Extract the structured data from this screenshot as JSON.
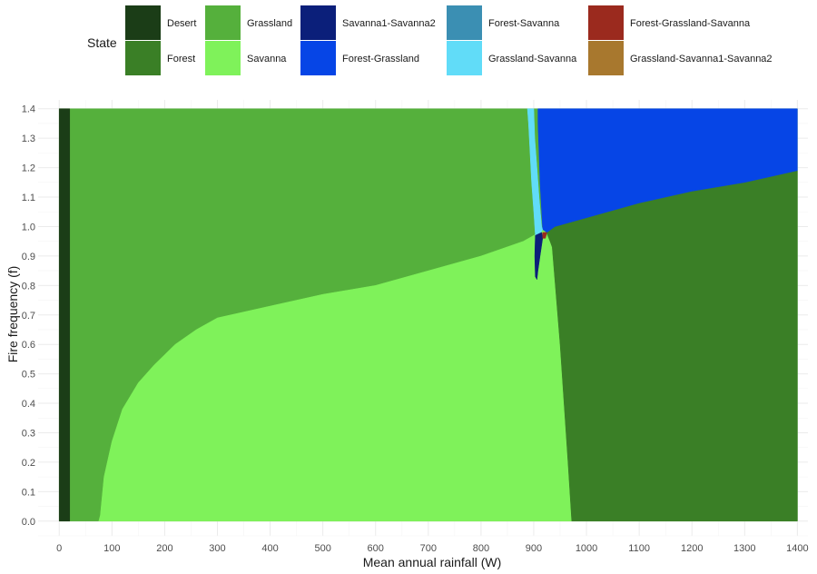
{
  "chart_data": {
    "type": "heatmap",
    "title": "",
    "xlabel": "Mean annual rainfall (W)",
    "ylabel": "Fire frequency (f)",
    "xlim": [
      -40,
      1420
    ],
    "ylim": [
      -0.05,
      1.43
    ],
    "x_ticks": [
      0,
      100,
      200,
      300,
      400,
      500,
      600,
      700,
      800,
      900,
      1000,
      1100,
      1200,
      1300,
      1400
    ],
    "y_ticks": [
      0.0,
      0.1,
      0.2,
      0.3,
      0.4,
      0.5,
      0.6,
      0.7,
      0.8,
      0.9,
      1.0,
      1.1,
      1.2,
      1.3,
      1.4
    ],
    "y_tick_labels": [
      "0.0",
      "0.1",
      "0.2",
      "0.3",
      "0.4",
      "0.5",
      "0.6",
      "0.7",
      "0.8",
      "0.9",
      "1.0",
      "1.1",
      "1.2",
      "1.3",
      "1.4"
    ],
    "grid": true,
    "legend": {
      "title": "State",
      "placement": "top",
      "entries": [
        {
          "name": "Desert",
          "color": "#1b3d17"
        },
        {
          "name": "Forest",
          "color": "#3a7f26"
        },
        {
          "name": "Grassland",
          "color": "#55b03c"
        },
        {
          "name": "Savanna",
          "color": "#7ff25a"
        },
        {
          "name": "Savanna1-Savanna2",
          "color": "#0b1f7a"
        },
        {
          "name": "Forest-Grassland",
          "color": "#0645e6"
        },
        {
          "name": "Forest-Savanna",
          "color": "#3b8fb3"
        },
        {
          "name": "Grassland-Savanna",
          "color": "#61dcf8"
        },
        {
          "name": "Forest-Grassland-Savanna",
          "color": "#9b2a1e"
        },
        {
          "name": "Grassland-Savanna1-Savanna2",
          "color": "#a8782e"
        }
      ]
    },
    "regions": [
      {
        "state": "Grassland",
        "polygon": [
          [
            0,
            0
          ],
          [
            1400,
            0
          ],
          [
            1400,
            1.4
          ],
          [
            0,
            1.4
          ]
        ]
      },
      {
        "state": "Desert",
        "polygon": [
          [
            0,
            0
          ],
          [
            20,
            0
          ],
          [
            20,
            1.4
          ],
          [
            0,
            1.4
          ]
        ]
      },
      {
        "state": "Savanna",
        "polygon": [
          [
            75,
            0
          ],
          [
            78,
            0.02
          ],
          [
            85,
            0.15
          ],
          [
            100,
            0.27
          ],
          [
            120,
            0.38
          ],
          [
            150,
            0.47
          ],
          [
            180,
            0.53
          ],
          [
            220,
            0.6
          ],
          [
            260,
            0.65
          ],
          [
            300,
            0.69
          ],
          [
            400,
            0.73
          ],
          [
            500,
            0.77
          ],
          [
            600,
            0.8
          ],
          [
            700,
            0.85
          ],
          [
            800,
            0.9
          ],
          [
            880,
            0.95
          ],
          [
            900,
            0.97
          ],
          [
            920,
            0.99
          ],
          [
            935,
            0.93
          ],
          [
            950,
            0.6
          ],
          [
            965,
            0.2
          ],
          [
            972,
            0
          ],
          [
            900,
            0
          ]
        ]
      },
      {
        "state": "Forest",
        "polygon": [
          [
            972,
            0
          ],
          [
            1400,
            0
          ],
          [
            1400,
            1.19
          ],
          [
            1300,
            1.15
          ],
          [
            1200,
            1.12
          ],
          [
            1100,
            1.08
          ],
          [
            1000,
            1.03
          ],
          [
            940,
            1.0
          ],
          [
            925,
            0.98
          ],
          [
            935,
            0.93
          ],
          [
            950,
            0.6
          ],
          [
            965,
            0.2
          ]
        ]
      },
      {
        "state": "Forest-Grassland",
        "polygon": [
          [
            908,
            1.4
          ],
          [
            1400,
            1.4
          ],
          [
            1400,
            1.19
          ],
          [
            1300,
            1.15
          ],
          [
            1200,
            1.12
          ],
          [
            1100,
            1.08
          ],
          [
            1000,
            1.03
          ],
          [
            940,
            1.0
          ],
          [
            925,
            0.98
          ],
          [
            917,
            0.99
          ],
          [
            915,
            1.05
          ],
          [
            912,
            1.15
          ],
          [
            910,
            1.25
          ],
          [
            908,
            1.35
          ]
        ]
      },
      {
        "state": "Grassland-Savanna",
        "polygon": [
          [
            888,
            1.4
          ],
          [
            900,
            1.4
          ],
          [
            902,
            1.3
          ],
          [
            906,
            1.2
          ],
          [
            910,
            1.1
          ],
          [
            915,
            1.0
          ],
          [
            917,
            0.99
          ],
          [
            910,
            0.97
          ],
          [
            903,
            0.97
          ],
          [
            900,
            1.05
          ],
          [
            896,
            1.15
          ],
          [
            893,
            1.25
          ],
          [
            890,
            1.35
          ]
        ]
      },
      {
        "state": "Savanna1-Savanna2",
        "polygon": [
          [
            903,
            0.97
          ],
          [
            915,
            0.98
          ],
          [
            917,
            0.96
          ],
          [
            912,
            0.9
          ],
          [
            908,
            0.85
          ],
          [
            906,
            0.82
          ],
          [
            903,
            0.83
          ],
          [
            902,
            0.9
          ]
        ]
      },
      {
        "state": "Forest-Grassland-Savanna",
        "polygon": [
          [
            917,
            0.98
          ],
          [
            925,
            0.98
          ],
          [
            922,
            0.96
          ],
          [
            917,
            0.96
          ]
        ]
      }
    ]
  }
}
